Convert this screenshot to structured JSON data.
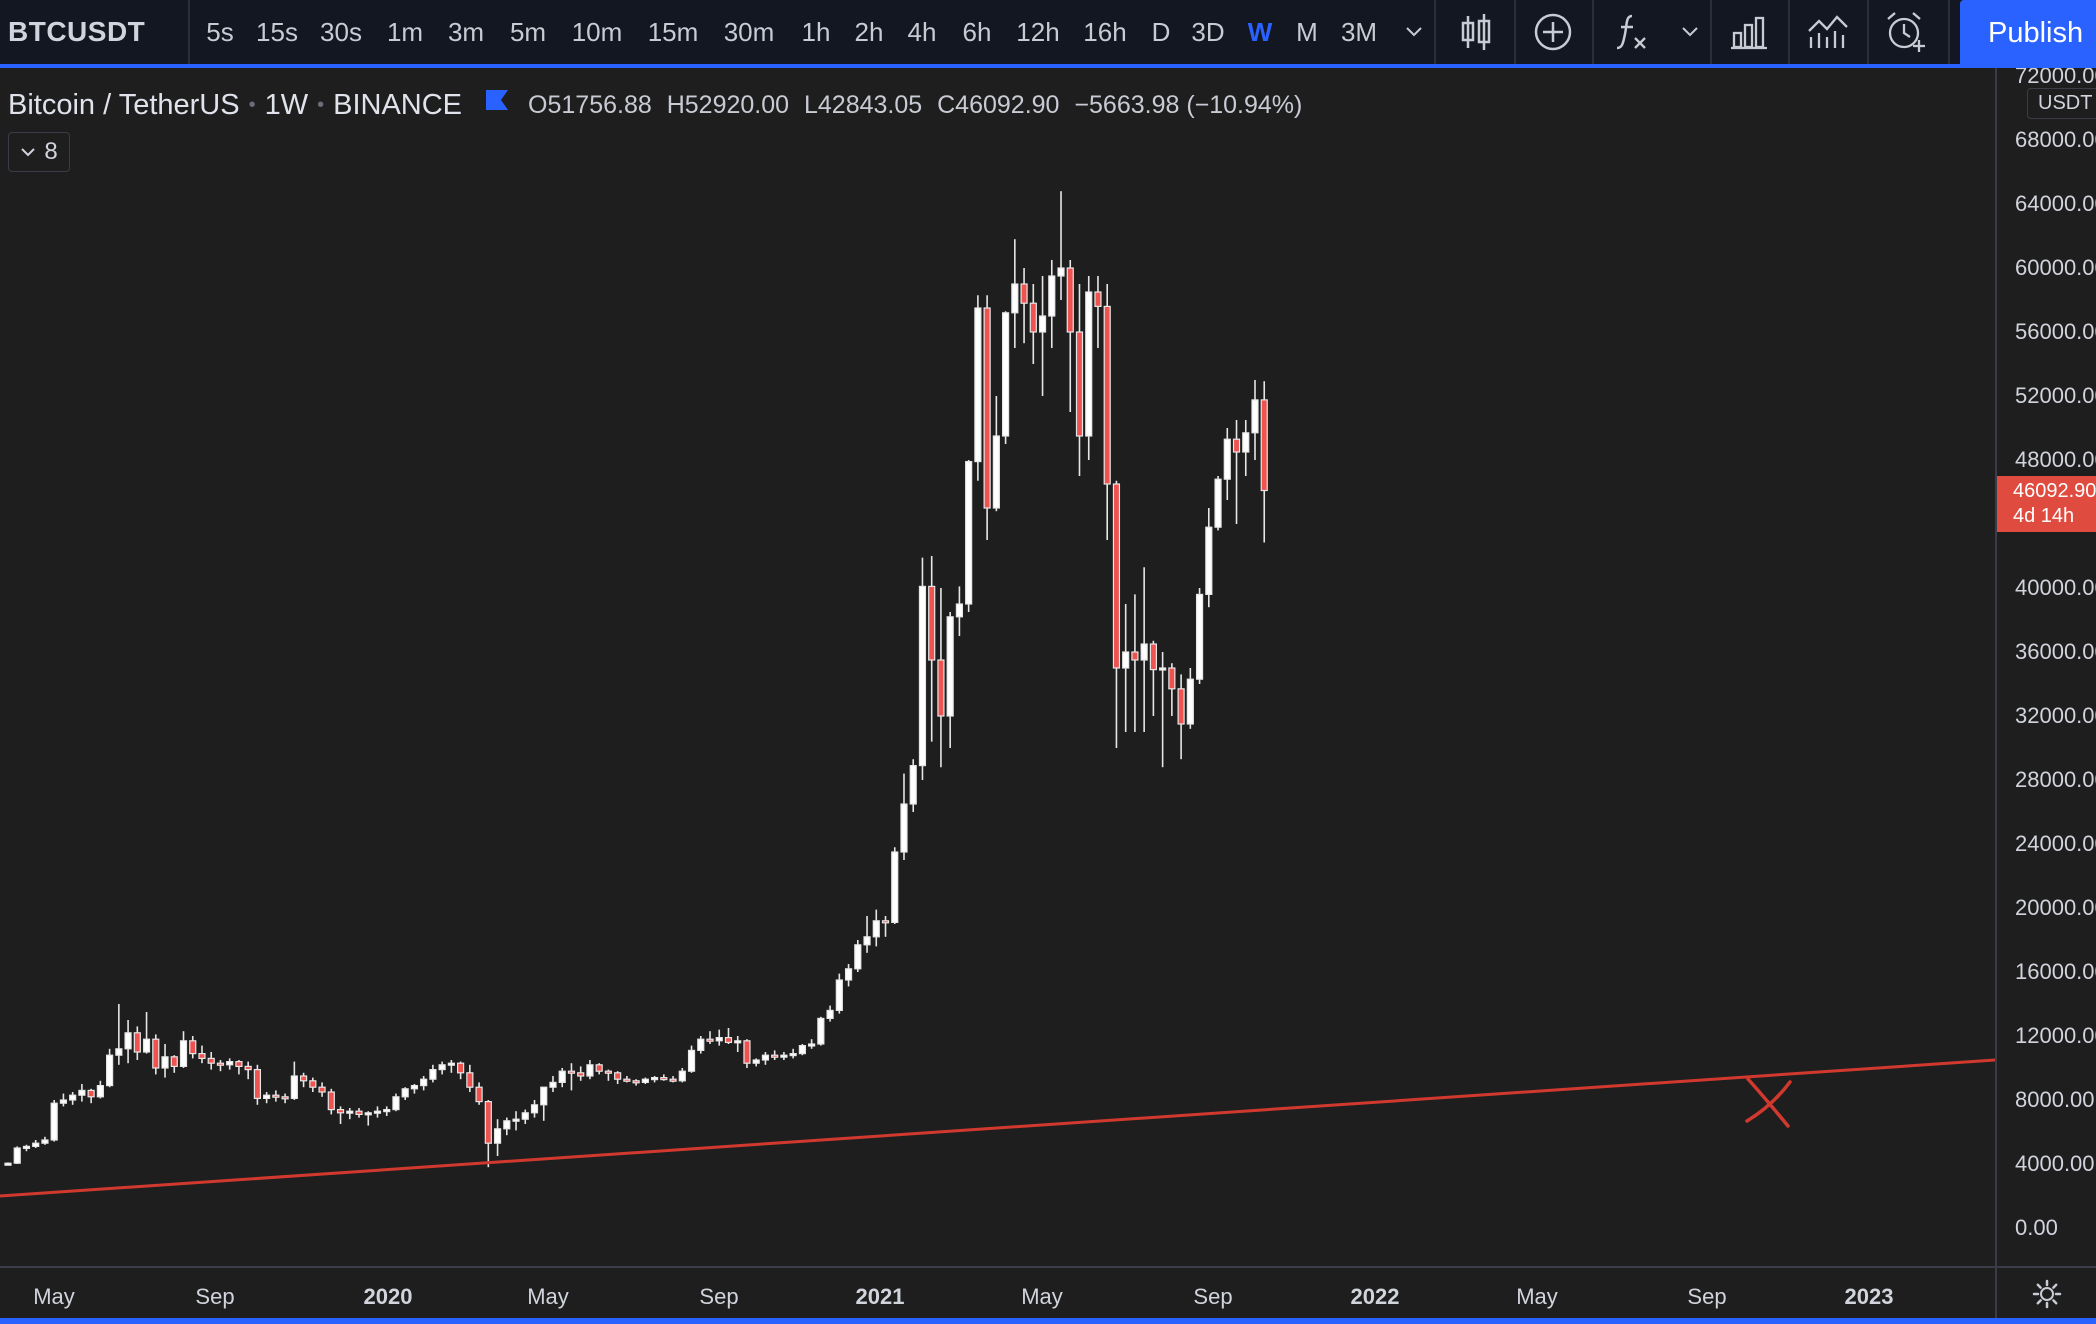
{
  "toolbar": {
    "symbol": "BTCUSDT",
    "intervals": [
      {
        "label": "5s",
        "active": false
      },
      {
        "label": "15s",
        "active": false
      },
      {
        "label": "30s",
        "active": false
      },
      {
        "label": "1m",
        "active": false
      },
      {
        "label": "3m",
        "active": false
      },
      {
        "label": "5m",
        "active": false
      },
      {
        "label": "10m",
        "active": false
      },
      {
        "label": "15m",
        "active": false
      },
      {
        "label": "30m",
        "active": false
      },
      {
        "label": "1h",
        "active": false
      },
      {
        "label": "2h",
        "active": false
      },
      {
        "label": "4h",
        "active": false
      },
      {
        "label": "6h",
        "active": false
      },
      {
        "label": "12h",
        "active": false
      },
      {
        "label": "16h",
        "active": false
      },
      {
        "label": "D",
        "active": false
      },
      {
        "label": "3D",
        "active": false
      },
      {
        "label": "W",
        "active": true
      },
      {
        "label": "M",
        "active": false
      },
      {
        "label": "3M",
        "active": false
      }
    ],
    "icons": [
      "chevron-down-icon",
      "candlestick-icon",
      "compare-plus-icon",
      "indicators-fx-icon",
      "chevron-down-icon",
      "bar-chart-icon",
      "templates-icon",
      "alarm-plus-icon"
    ],
    "publish_label": "Publish"
  },
  "legend": {
    "symbol_name": "Bitcoin / TetherUS",
    "interval": "1W",
    "exchange": "BINANCE",
    "open": "O51756.88",
    "high": "H52920.00",
    "low": "L42843.05",
    "close": "C46092.90",
    "change": "−5663.98 (−10.94%)",
    "indicators_count": "8"
  },
  "price_axis": {
    "currency": "USDT",
    "labels": [
      "72000.00",
      "68000.00",
      "64000.00",
      "60000.00",
      "56000.00",
      "52000.00",
      "48000.00",
      "40000.00",
      "36000.00",
      "32000.00",
      "28000.00",
      "24000.00",
      "20000.00",
      "16000.00",
      "12000.00",
      "8000.00",
      "4000.00",
      "0.00"
    ],
    "last_price": "46092.90",
    "countdown": "4d 14h"
  },
  "time_axis": {
    "labels": [
      "May",
      "Sep",
      "2020",
      "May",
      "Sep",
      "2021",
      "May",
      "Sep",
      "2022",
      "May",
      "Sep",
      "2023"
    ]
  },
  "colors": {
    "background": "#1e1e1e",
    "toolbar": "#131722",
    "accent": "#2962ff",
    "trendline": "#d2392e",
    "last_price_bg": "#e04b3f",
    "candle_up": "#ffffff",
    "candle_down": "#ef5350"
  },
  "chart_data": {
    "type": "candlestick",
    "ylim": [
      0,
      72000
    ],
    "title": "Bitcoin / TetherUS · 1W · BINANCE",
    "candles": [
      [
        4000,
        4100,
        3950,
        4050
      ],
      [
        4050,
        5100,
        4000,
        5000
      ],
      [
        5000,
        5200,
        4800,
        5100
      ],
      [
        5100,
        5500,
        5000,
        5300
      ],
      [
        5300,
        5700,
        5200,
        5500
      ],
      [
        5500,
        8000,
        5400,
        7800
      ],
      [
        7800,
        8400,
        7600,
        8000
      ],
      [
        8000,
        8500,
        7700,
        8300
      ],
      [
        8300,
        9000,
        7900,
        8600
      ],
      [
        8600,
        8700,
        7800,
        8200
      ],
      [
        8200,
        9200,
        8100,
        8900
      ],
      [
        8900,
        11200,
        8800,
        10800
      ],
      [
        10800,
        14000,
        10200,
        11200
      ],
      [
        11200,
        13000,
        10300,
        12200
      ],
      [
        12200,
        12600,
        10500,
        11000
      ],
      [
        11000,
        13500,
        10900,
        11800
      ],
      [
        11800,
        12100,
        9600,
        10000
      ],
      [
        10000,
        11500,
        9400,
        10700
      ],
      [
        10700,
        10800,
        9700,
        10100
      ],
      [
        10100,
        12300,
        10000,
        11700
      ],
      [
        11700,
        12000,
        10600,
        10900
      ],
      [
        10900,
        11400,
        10300,
        10600
      ],
      [
        10600,
        11000,
        9900,
        10300
      ],
      [
        10300,
        10500,
        9800,
        10200
      ],
      [
        10200,
        10600,
        9900,
        10400
      ],
      [
        10400,
        10500,
        9600,
        10100
      ],
      [
        10100,
        10400,
        9300,
        9900
      ],
      [
        9900,
        10200,
        7700,
        8100
      ],
      [
        8100,
        8500,
        7800,
        8300
      ],
      [
        8300,
        8600,
        7900,
        8200
      ],
      [
        8200,
        8400,
        7800,
        8100
      ],
      [
        8100,
        10400,
        8000,
        9500
      ],
      [
        9500,
        9700,
        8800,
        9200
      ],
      [
        9200,
        9400,
        8500,
        8800
      ],
      [
        8800,
        9100,
        8200,
        8500
      ],
      [
        8500,
        8700,
        7100,
        7400
      ],
      [
        7400,
        7600,
        6500,
        7200
      ],
      [
        7200,
        7500,
        6800,
        7300
      ],
      [
        7300,
        7500,
        6900,
        7100
      ],
      [
        7100,
        7300,
        6400,
        7200
      ],
      [
        7200,
        7600,
        6900,
        7300
      ],
      [
        7300,
        7600,
        7000,
        7400
      ],
      [
        7400,
        8400,
        7300,
        8200
      ],
      [
        8200,
        8800,
        8000,
        8700
      ],
      [
        8700,
        9000,
        8400,
        8900
      ],
      [
        8900,
        9500,
        8600,
        9300
      ],
      [
        9300,
        10200,
        9100,
        9900
      ],
      [
        9900,
        10400,
        9600,
        10200
      ],
      [
        10200,
        10500,
        9700,
        10300
      ],
      [
        10300,
        10400,
        9300,
        9700
      ],
      [
        9700,
        10200,
        8500,
        8800
      ],
      [
        8800,
        9100,
        7700,
        7900
      ],
      [
        7900,
        8000,
        3800,
        5300
      ],
      [
        5300,
        6800,
        4500,
        6200
      ],
      [
        6200,
        6900,
        5800,
        6700
      ],
      [
        6700,
        7300,
        6100,
        6800
      ],
      [
        6800,
        7400,
        6500,
        7200
      ],
      [
        7200,
        8000,
        6900,
        7700
      ],
      [
        7700,
        8200,
        6700,
        8800
      ],
      [
        8800,
        9500,
        8500,
        9100
      ],
      [
        9100,
        10000,
        8800,
        9800
      ],
      [
        9800,
        10300,
        8600,
        9700
      ],
      [
        9700,
        10100,
        9200,
        9500
      ],
      [
        9500,
        10500,
        9300,
        10200
      ],
      [
        10200,
        10300,
        9600,
        9800
      ],
      [
        9800,
        9900,
        9200,
        9700
      ],
      [
        9700,
        9800,
        9000,
        9300
      ],
      [
        9300,
        9500,
        9100,
        9200
      ],
      [
        9200,
        9300,
        8900,
        9100
      ],
      [
        9100,
        9400,
        9000,
        9300
      ],
      [
        9300,
        9500,
        9100,
        9400
      ],
      [
        9400,
        9600,
        9200,
        9300
      ],
      [
        9300,
        9500,
        9100,
        9200
      ],
      [
        9200,
        10000,
        9100,
        9800
      ],
      [
        9800,
        11400,
        9700,
        11100
      ],
      [
        11100,
        12000,
        10900,
        11800
      ],
      [
        11800,
        12300,
        11500,
        11700
      ],
      [
        11700,
        12400,
        11400,
        11900
      ],
      [
        11900,
        12500,
        11500,
        11600
      ],
      [
        11600,
        12000,
        11000,
        11700
      ],
      [
        11700,
        11800,
        10000,
        10300
      ],
      [
        10300,
        10600,
        10100,
        10500
      ],
      [
        10500,
        11000,
        10200,
        10800
      ],
      [
        10800,
        11100,
        10500,
        10700
      ],
      [
        10700,
        11000,
        10500,
        10800
      ],
      [
        10800,
        11200,
        10600,
        10900
      ],
      [
        10900,
        11500,
        10800,
        11400
      ],
      [
        11400,
        11800,
        11200,
        11500
      ],
      [
        11500,
        13200,
        11400,
        13100
      ],
      [
        13100,
        13900,
        12900,
        13600
      ],
      [
        13600,
        15900,
        13400,
        15500
      ],
      [
        15500,
        16500,
        15100,
        16200
      ],
      [
        16200,
        18000,
        16000,
        17700
      ],
      [
        17700,
        19500,
        17200,
        18200
      ],
      [
        18200,
        19900,
        17600,
        19200
      ],
      [
        19200,
        19500,
        18200,
        19100
      ],
      [
        19100,
        23800,
        19000,
        23500
      ],
      [
        23500,
        28400,
        23000,
        26500
      ],
      [
        26500,
        29300,
        26000,
        28900
      ],
      [
        28900,
        41900,
        28000,
        40100
      ],
      [
        40100,
        42000,
        30400,
        35500
      ],
      [
        35500,
        40000,
        28800,
        32000
      ],
      [
        32000,
        38500,
        30000,
        38200
      ],
      [
        38200,
        40100,
        37000,
        39000
      ],
      [
        39000,
        48000,
        38500,
        47900
      ],
      [
        47900,
        58300,
        46700,
        57500
      ],
      [
        57500,
        58300,
        43000,
        45000
      ],
      [
        45000,
        52000,
        44800,
        49500
      ],
      [
        49500,
        57300,
        49000,
        57200
      ],
      [
        57200,
        61800,
        55000,
        59000
      ],
      [
        59000,
        60000,
        55300,
        57800
      ],
      [
        57800,
        59000,
        54000,
        56000
      ],
      [
        56000,
        59500,
        52000,
        57000
      ],
      [
        57000,
        60500,
        55000,
        59500
      ],
      [
        59500,
        64800,
        58000,
        60000
      ],
      [
        60000,
        60500,
        51000,
        56000
      ],
      [
        56000,
        59000,
        47000,
        49500
      ],
      [
        49500,
        59500,
        48000,
        58500
      ],
      [
        58500,
        59500,
        55000,
        57600
      ],
      [
        57600,
        59000,
        43000,
        46500
      ],
      [
        46500,
        46700,
        30000,
        35000
      ],
      [
        35000,
        39000,
        31000,
        36000
      ],
      [
        36000,
        39600,
        31000,
        35500
      ],
      [
        35500,
        41300,
        31000,
        36500
      ],
      [
        36500,
        36700,
        32000,
        34900
      ],
      [
        34900,
        36000,
        28800,
        35000
      ],
      [
        35000,
        35300,
        32000,
        33700
      ],
      [
        33700,
        34600,
        29300,
        31500
      ],
      [
        31500,
        35000,
        31200,
        34300
      ],
      [
        34300,
        40000,
        34000,
        39600
      ],
      [
        39600,
        45000,
        38800,
        43800
      ],
      [
        43800,
        47000,
        43600,
        46800
      ],
      [
        46800,
        50000,
        45500,
        49300
      ],
      [
        49300,
        50500,
        44000,
        48500
      ],
      [
        48500,
        50500,
        47000,
        49700
      ],
      [
        49700,
        53000,
        48000,
        51756.88
      ],
      [
        51756.88,
        52920,
        42843.05,
        46092.9
      ]
    ],
    "trendline": {
      "from": {
        "date": "2019-03-11",
        "price": 4000
      },
      "to": {
        "date": "2023-05-22",
        "price": 12500
      }
    }
  }
}
